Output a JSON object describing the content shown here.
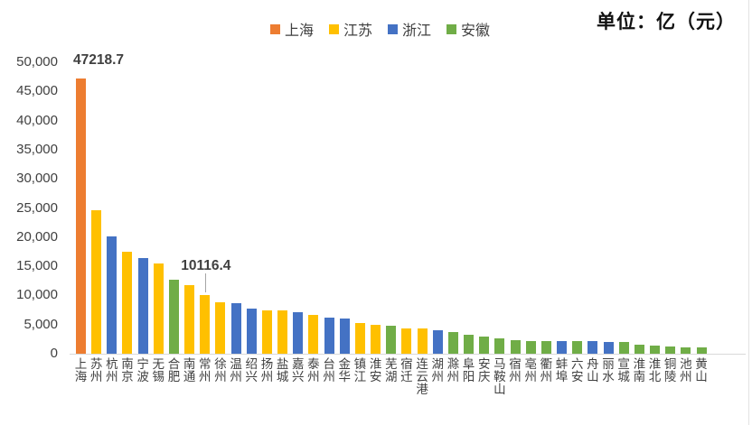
{
  "unit_label": "单位：亿（元）",
  "legend": {
    "items": [
      {
        "label": "上海",
        "color": "#ED7D31"
      },
      {
        "label": "江苏",
        "color": "#FFC000"
      },
      {
        "label": "浙江",
        "color": "#4472C4"
      },
      {
        "label": "安徽",
        "color": "#70AD47"
      }
    ]
  },
  "chart_data": {
    "type": "bar",
    "title": "",
    "unit_note": "单位：亿（元）",
    "ylabel": "",
    "xlabel": "",
    "ylim": [
      0,
      50000
    ],
    "ytick_step": 5000,
    "ytick_labels": [
      "0",
      "5,000",
      "10,000",
      "15,000",
      "20,000",
      "25,000",
      "30,000",
      "35,000",
      "40,000",
      "45,000",
      "50,000"
    ],
    "grid": false,
    "legend_position": "top-center",
    "series_legend": [
      "上海",
      "江苏",
      "浙江",
      "安徽"
    ],
    "visible_data_labels": [
      {
        "category": "上海",
        "text": "47218.7",
        "leader_line": false
      },
      {
        "category": "常州",
        "text": "10116.4",
        "leader_line": true
      }
    ],
    "bars": [
      {
        "city": "上海",
        "series": "上海",
        "value": 47218.7
      },
      {
        "city": "苏州",
        "series": "江苏",
        "value": 24653.4
      },
      {
        "city": "杭州",
        "series": "浙江",
        "value": 20059.0
      },
      {
        "city": "南京",
        "series": "江苏",
        "value": 17421.4
      },
      {
        "city": "宁波",
        "series": "浙江",
        "value": 16452.8
      },
      {
        "city": "无锡",
        "series": "江苏",
        "value": 15456.2
      },
      {
        "city": "合肥",
        "series": "安徽",
        "value": 12673.8
      },
      {
        "city": "南通",
        "series": "江苏",
        "value": 11813.3
      },
      {
        "city": "常州",
        "series": "江苏",
        "value": 10116.4
      },
      {
        "city": "徐州",
        "series": "江苏",
        "value": 8900.4
      },
      {
        "city": "温州",
        "series": "浙江",
        "value": 8730.6
      },
      {
        "city": "绍兴",
        "series": "浙江",
        "value": 7791.1
      },
      {
        "city": "扬州",
        "series": "江苏",
        "value": 7423.3
      },
      {
        "city": "盐城",
        "series": "江苏",
        "value": 7403.9
      },
      {
        "city": "嘉兴",
        "series": "浙江",
        "value": 7062.5
      },
      {
        "city": "泰州",
        "series": "江苏",
        "value": 6731.7
      },
      {
        "city": "台州",
        "series": "浙江",
        "value": 6240.7
      },
      {
        "city": "金华",
        "series": "浙江",
        "value": 6011.3
      },
      {
        "city": "镇江",
        "series": "江苏",
        "value": 5264.1
      },
      {
        "city": "淮安",
        "series": "江苏",
        "value": 5015.1
      },
      {
        "city": "芜湖",
        "series": "安徽",
        "value": 4741.1
      },
      {
        "city": "宿迁",
        "series": "江苏",
        "value": 4398.1
      },
      {
        "city": "连云港",
        "series": "江苏",
        "value": 4363.6
      },
      {
        "city": "湖州",
        "series": "浙江",
        "value": 4015.1
      },
      {
        "city": "滁州",
        "series": "安徽",
        "value": 3782.0
      },
      {
        "city": "阜阳",
        "series": "安徽",
        "value": 3323.7
      },
      {
        "city": "安庆",
        "series": "安徽",
        "value": 2878.5
      },
      {
        "city": "马鞍山",
        "series": "安徽",
        "value": 2590.6
      },
      {
        "city": "宿州",
        "series": "安徽",
        "value": 2321.5
      },
      {
        "city": "亳州",
        "series": "安徽",
        "value": 2215.8
      },
      {
        "city": "衢州",
        "series": "安徽",
        "value": 2125.2
      },
      {
        "city": "蚌埠",
        "series": "浙江",
        "value": 2121.0
      },
      {
        "city": "六安",
        "series": "安徽",
        "value": 2117.5
      },
      {
        "city": "舟山",
        "series": "浙江",
        "value": 2100.8
      },
      {
        "city": "丽水",
        "series": "浙江",
        "value": 1964.4
      },
      {
        "city": "宣城",
        "series": "安徽",
        "value": 1949.4
      },
      {
        "city": "淮南",
        "series": "安徽",
        "value": 1612.9
      },
      {
        "city": "淮北",
        "series": "安徽",
        "value": 1370.5
      },
      {
        "city": "铜陵",
        "series": "安徽",
        "value": 1229.7
      },
      {
        "city": "池州",
        "series": "安徽",
        "value": 1121.6
      },
      {
        "city": "黄山",
        "series": "安徽",
        "value": 1046.3
      }
    ],
    "series_colors": {
      "上海": "#ED7D31",
      "江苏": "#FFC000",
      "浙江": "#4472C4",
      "安徽": "#70AD47"
    }
  }
}
